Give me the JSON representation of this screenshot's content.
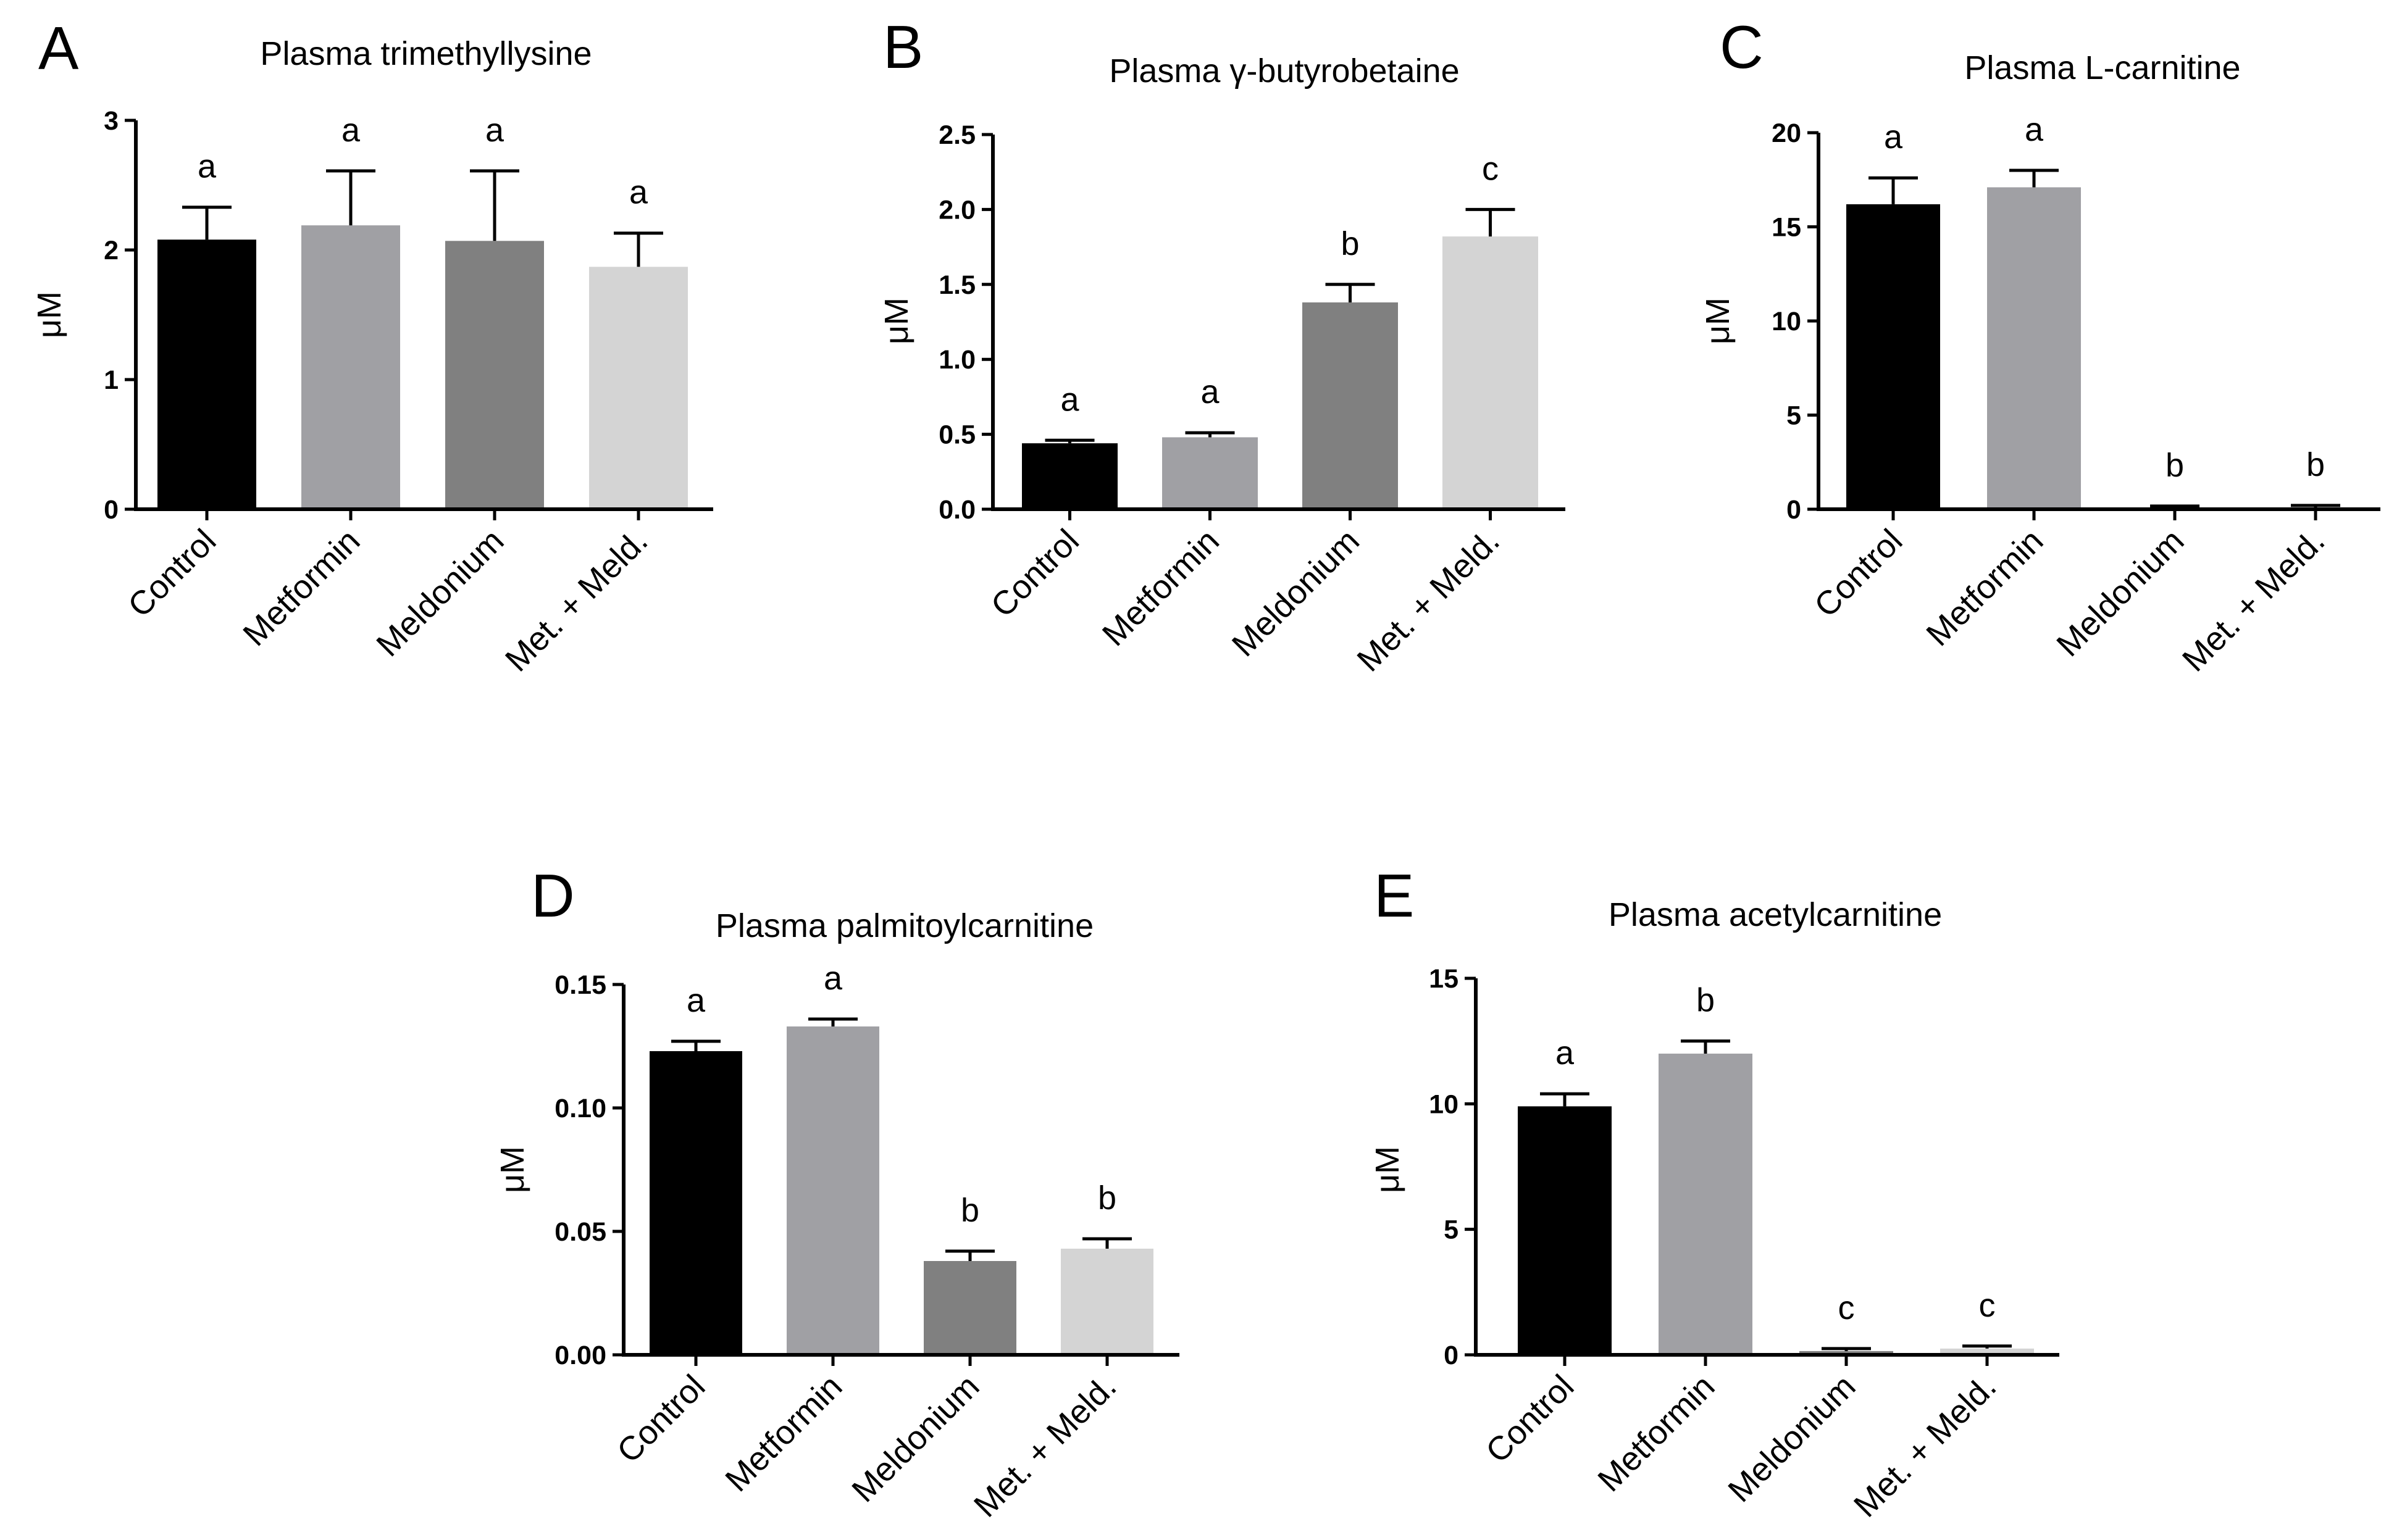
{
  "figure": {
    "background": "#ffffff"
  },
  "chart_data": [
    {
      "panel": "A",
      "type": "bar",
      "title": "Plasma trimethyllysine",
      "xlabel": "",
      "ylabel": "μM",
      "ylim": [
        0,
        3
      ],
      "yticks": [
        0,
        1,
        2,
        3
      ],
      "ytick_labels": [
        "0",
        "1",
        "2",
        "3"
      ],
      "categories": [
        "Control",
        "Metformin",
        "Meldonium",
        "Met. + Meld."
      ],
      "values": [
        2.08,
        2.19,
        2.07,
        1.87
      ],
      "errors": [
        0.25,
        0.42,
        0.54,
        0.26
      ],
      "significance": [
        "a",
        "a",
        "a",
        "a"
      ],
      "colors": [
        "#000000",
        "#a0a0a4",
        "#808080",
        "#d4d4d4"
      ],
      "grid": false
    },
    {
      "panel": "B",
      "type": "bar",
      "title": "Plasma γ-butyrobetaine",
      "xlabel": "",
      "ylabel": "μM",
      "ylim": [
        0,
        2.5
      ],
      "yticks": [
        0,
        0.5,
        1.0,
        1.5,
        2.0,
        2.5
      ],
      "ytick_labels": [
        "0.0",
        "0.5",
        "1.0",
        "1.5",
        "2.0",
        "2.5"
      ],
      "categories": [
        "Control",
        "Metformin",
        "Meldonium",
        "Met. + Meld."
      ],
      "values": [
        0.44,
        0.48,
        1.38,
        1.82
      ],
      "errors": [
        0.02,
        0.03,
        0.12,
        0.18
      ],
      "significance": [
        "a",
        "a",
        "b",
        "c"
      ],
      "colors": [
        "#000000",
        "#a0a0a4",
        "#808080",
        "#d4d4d4"
      ],
      "grid": false
    },
    {
      "panel": "C",
      "type": "bar",
      "title": "Plasma L-carnitine",
      "xlabel": "",
      "ylabel": "μM",
      "ylim": [
        0,
        20
      ],
      "yticks": [
        0,
        5,
        10,
        15,
        20
      ],
      "ytick_labels": [
        "0",
        "5",
        "10",
        "15",
        "20"
      ],
      "categories": [
        "Control",
        "Metformin",
        "Meldonium",
        "Met. + Meld."
      ],
      "values": [
        16.2,
        17.1,
        0.05,
        0.08
      ],
      "errors": [
        1.4,
        0.9,
        0.12,
        0.12
      ],
      "significance": [
        "a",
        "a",
        "b",
        "b"
      ],
      "colors": [
        "#000000",
        "#a0a0a4",
        "#808080",
        "#d4d4d4"
      ],
      "grid": false
    },
    {
      "panel": "D",
      "type": "bar",
      "title": "Plasma palmitoylcarnitine",
      "xlabel": "",
      "ylabel": "μM",
      "ylim": [
        0,
        0.15
      ],
      "yticks": [
        0,
        0.05,
        0.1,
        0.15
      ],
      "ytick_labels": [
        "0.00",
        "0.05",
        "0.10",
        "0.15"
      ],
      "categories": [
        "Control",
        "Metformin",
        "Meldonium",
        "Met. + Meld."
      ],
      "values": [
        0.123,
        0.133,
        0.038,
        0.043
      ],
      "errors": [
        0.004,
        0.003,
        0.004,
        0.004
      ],
      "significance": [
        "a",
        "a",
        "b",
        "b"
      ],
      "colors": [
        "#000000",
        "#a0a0a4",
        "#808080",
        "#d4d4d4"
      ],
      "grid": false
    },
    {
      "panel": "E",
      "type": "bar",
      "title": "Plasma acetylcarnitine",
      "xlabel": "",
      "ylabel": "μM",
      "ylim": [
        0,
        15
      ],
      "yticks": [
        0,
        5,
        10,
        15
      ],
      "ytick_labels": [
        "0",
        "5",
        "10",
        "15"
      ],
      "categories": [
        "Control",
        "Metformin",
        "Meldonium",
        "Met. + Meld."
      ],
      "values": [
        9.9,
        12.0,
        0.15,
        0.25
      ],
      "errors": [
        0.5,
        0.5,
        0.1,
        0.1
      ],
      "significance": [
        "a",
        "b",
        "c",
        "c"
      ],
      "colors": [
        "#000000",
        "#a0a0a4",
        "#808080",
        "#d4d4d4"
      ],
      "grid": false
    }
  ]
}
